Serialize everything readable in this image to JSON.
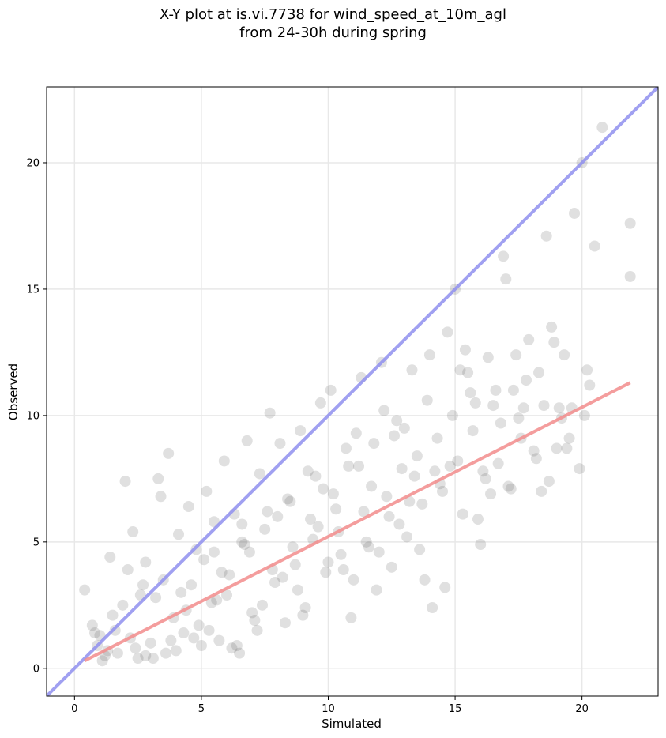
{
  "chart_data": {
    "type": "scatter",
    "title_line1": "X-Y plot at is.vi.7738 for wind_speed_at_10m_agl",
    "title_line2": "from 24-30h during spring",
    "xlabel": "Simulated",
    "ylabel": "Observed",
    "xlim": [
      -1.1,
      23.0
    ],
    "ylim": [
      -1.1,
      23.0
    ],
    "xticks": [
      0,
      5,
      10,
      15,
      20
    ],
    "yticks": [
      0,
      5,
      10,
      15,
      20
    ],
    "grid": true,
    "colors": {
      "points": "#555555",
      "identity_line": "#8f8fef",
      "fit_line": "#f28c8c",
      "grid": "#e8e8e8"
    },
    "identity_line": {
      "x": [
        -1.1,
        23.0
      ],
      "y": [
        -1.1,
        23.0
      ]
    },
    "fit_line": {
      "x": [
        0.4,
        21.9
      ],
      "y": [
        0.3,
        11.3
      ]
    },
    "points": {
      "x": [
        0.4,
        0.7,
        0.9,
        1.0,
        1.2,
        1.4,
        1.5,
        1.7,
        2.0,
        2.1,
        2.2,
        2.3,
        2.4,
        2.6,
        2.8,
        3.0,
        3.3,
        3.4,
        3.5,
        3.7,
        3.9,
        4.0,
        4.1,
        4.3,
        4.5,
        4.6,
        4.8,
        5.0,
        5.2,
        5.4,
        5.5,
        5.7,
        5.9,
        6.1,
        6.3,
        6.5,
        6.7,
        6.8,
        7.0,
        7.3,
        7.5,
        7.7,
        7.9,
        8.1,
        8.3,
        8.5,
        8.7,
        8.9,
        9.1,
        9.3,
        9.5,
        9.7,
        9.9,
        10.1,
        10.3,
        10.5,
        10.7,
        10.9,
        11.1,
        11.3,
        11.5,
        11.7,
        11.9,
        12.1,
        12.3,
        12.5,
        12.7,
        12.9,
        13.1,
        13.3,
        13.5,
        13.7,
        13.9,
        14.1,
        14.3,
        14.5,
        14.7,
        14.9,
        15.1,
        15.3,
        15.5,
        15.7,
        15.9,
        16.1,
        16.3,
        16.5,
        16.7,
        16.9,
        17.1,
        17.3,
        17.5,
        17.7,
        17.9,
        18.1,
        18.3,
        18.5,
        18.7,
        18.9,
        19.1,
        19.3,
        19.5,
        19.7,
        19.9,
        20.1,
        20.3,
        20.5,
        20.8,
        21.9,
        21.9,
        1.1,
        1.6,
        2.5,
        3.2,
        3.6,
        4.2,
        4.7,
        5.1,
        5.6,
        6.2,
        6.6,
        7.1,
        7.6,
        8.2,
        8.6,
        9.2,
        9.6,
        10.2,
        10.6,
        11.2,
        11.6,
        12.2,
        12.8,
        13.2,
        13.8,
        14.4,
        14.8,
        15.4,
        16.0,
        16.6,
        17.2,
        17.8,
        18.4,
        19.0,
        19.6,
        20.0,
        2.8,
        3.8,
        4.4,
        5.3,
        5.8,
        6.4,
        6.9,
        7.4,
        8.0,
        8.8,
        9.4,
        10.0,
        10.8,
        11.4,
        12.0,
        12.6,
        13.4,
        14.0,
        14.6,
        15.2,
        15.8,
        16.4,
        17.0,
        17.6,
        18.6,
        19.2,
        0.8,
        1.3,
        1.9,
        2.7,
        3.1,
        4.9,
        5.5,
        6.0,
        6.6,
        7.2,
        7.8,
        8.4,
        9.0,
        9.8,
        10.4,
        11.0,
        11.8,
        12.4,
        13.0,
        13.6,
        14.2,
        15.0,
        15.6,
        16.2,
        16.8,
        17.4,
        18.2,
        18.8,
        19.4,
        20.2
      ],
      "y": [
        3.1,
        1.7,
        0.9,
        1.3,
        0.5,
        4.4,
        2.1,
        0.6,
        7.4,
        3.9,
        1.2,
        5.4,
        0.8,
        2.9,
        4.2,
        1.0,
        7.5,
        6.8,
        3.5,
        8.5,
        2.0,
        0.7,
        5.3,
        1.4,
        6.4,
        3.3,
        4.7,
        0.9,
        7.0,
        2.6,
        5.8,
        1.1,
        8.2,
        3.7,
        6.1,
        0.6,
        4.9,
        9.0,
        2.2,
        7.7,
        5.5,
        10.1,
        3.4,
        8.9,
        1.8,
        6.6,
        4.1,
        9.4,
        2.4,
        5.9,
        7.6,
        10.5,
        3.8,
        11.0,
        6.3,
        4.5,
        8.7,
        2.0,
        9.3,
        11.5,
        5.0,
        7.2,
        3.1,
        12.1,
        6.8,
        4.0,
        9.8,
        7.9,
        5.2,
        11.8,
        8.4,
        6.5,
        10.6,
        2.4,
        9.1,
        7.0,
        13.3,
        10.0,
        8.2,
        6.1,
        11.7,
        9.4,
        5.9,
        7.8,
        12.3,
        10.4,
        8.1,
        16.3,
        7.2,
        11.0,
        9.9,
        10.3,
        13.0,
        8.6,
        11.7,
        10.4,
        7.4,
        12.9,
        10.3,
        12.4,
        9.1,
        18.0,
        7.9,
        10.0,
        11.2,
        16.7,
        21.4,
        17.6,
        15.5,
        0.3,
        1.5,
        0.4,
        2.8,
        0.6,
        3.0,
        1.2,
        4.3,
        2.7,
        0.8,
        5.0,
        1.9,
        6.2,
        3.6,
        4.8,
        7.8,
        5.6,
        6.9,
        3.9,
        8.0,
        4.8,
        10.2,
        5.7,
        6.6,
        3.5,
        7.3,
        8.0,
        12.6,
        4.9,
        11.0,
        7.1,
        11.4,
        7.0,
        8.7,
        10.3,
        20.0,
        0.5,
        1.1,
        2.3,
        1.5,
        3.8,
        0.9,
        4.6,
        2.5,
        6.0,
        3.1,
        5.1,
        4.2,
        8.0,
        6.2,
        4.6,
        9.2,
        7.6,
        12.4,
        3.2,
        11.8,
        10.5,
        6.9,
        15.4,
        9.1,
        17.1,
        9.9,
        1.4,
        0.7,
        2.5,
        3.3,
        0.4,
        1.7,
        4.6,
        2.9,
        5.7,
        1.5,
        3.9,
        6.7,
        2.1,
        7.1,
        5.4,
        3.5,
        8.9,
        6.0,
        9.5,
        4.7,
        7.8,
        15.0,
        10.9,
        7.5,
        9.7,
        12.4,
        8.3,
        13.5,
        8.7,
        11.8
      ]
    }
  }
}
